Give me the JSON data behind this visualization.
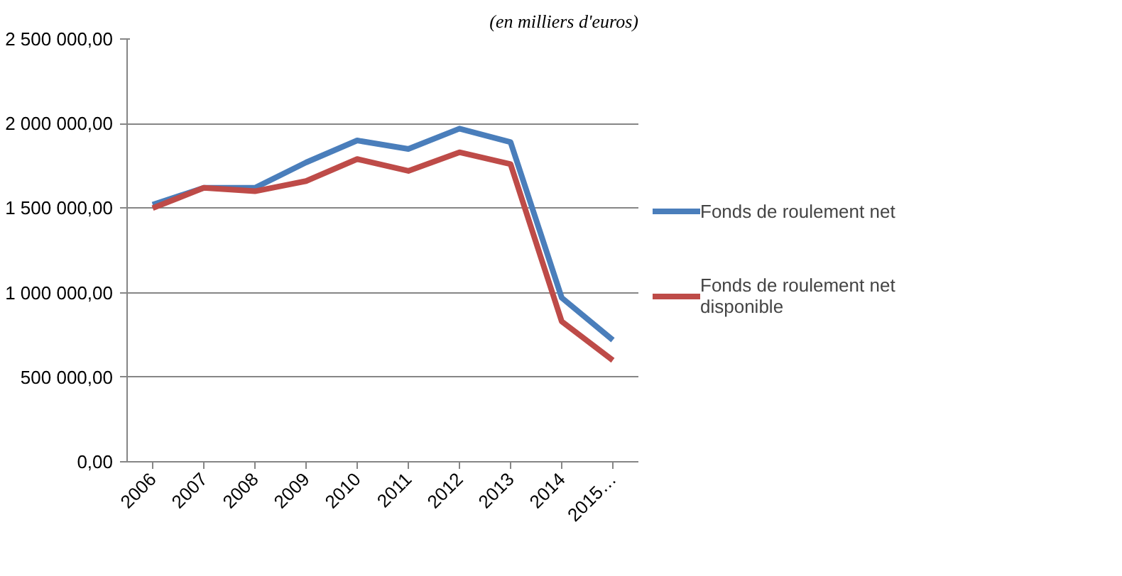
{
  "chart_data": {
    "type": "line",
    "annotations": [
      "(en milliers d'euros)"
    ],
    "categories": [
      "2006",
      "2007",
      "2008",
      "2009",
      "2010",
      "2011",
      "2012",
      "2013",
      "2014",
      "2015…"
    ],
    "series": [
      {
        "name": "Fonds de roulement net",
        "color": "#4a7ebb",
        "values": [
          1520000,
          1620000,
          1620000,
          1770000,
          1900000,
          1850000,
          1970000,
          1890000,
          970000,
          720000
        ]
      },
      {
        "name": "Fonds de roulement net disponible",
        "color": "#be4b48",
        "values": [
          1500000,
          1620000,
          1600000,
          1660000,
          1790000,
          1720000,
          1830000,
          1760000,
          830000,
          600000
        ]
      }
    ],
    "ylim": [
      0,
      2500000
    ],
    "yticks": [
      {
        "value": 0,
        "label": "0,00"
      },
      {
        "value": 500000,
        "label": "500 000,00"
      },
      {
        "value": 1000000,
        "label": "1 000 000,00"
      },
      {
        "value": 1500000,
        "label": "1 500 000,00"
      },
      {
        "value": 2000000,
        "label": "2 000 000,00"
      },
      {
        "value": 2500000,
        "label": "2 500 000,00"
      }
    ],
    "grid": "y",
    "legend": "right",
    "marker": "none",
    "line_style": "solid"
  }
}
